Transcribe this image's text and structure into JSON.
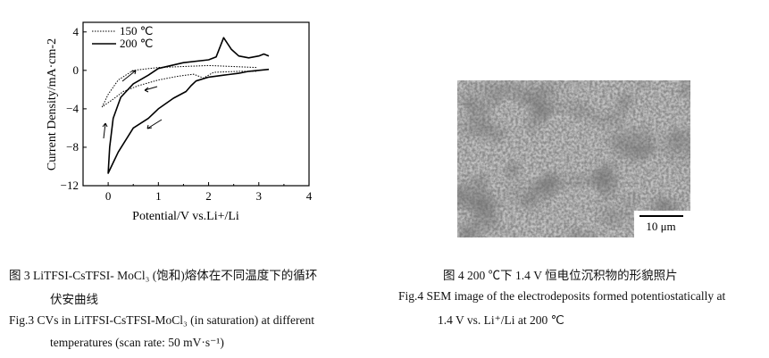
{
  "chart_data": {
    "type": "line",
    "xlabel": "Potential/V vs.Li+/Li",
    "ylabel": "Current Density/mA·cm-2",
    "xlim": [
      -0.5,
      4
    ],
    "ylim": [
      -12,
      5
    ],
    "xticks": [
      "0",
      "1",
      "2",
      "3",
      "4"
    ],
    "xtick_values": [
      0,
      1,
      2,
      3,
      4
    ],
    "yticks": [
      "4",
      "0",
      "−4",
      "−8",
      "−12"
    ],
    "ytick_values": [
      4,
      0,
      -4,
      -8,
      -12
    ],
    "legend_position": "top-left",
    "series": [
      {
        "name": "150 ℃",
        "style": "dotted",
        "points": [
          [
            2.95,
            0.3
          ],
          [
            2.0,
            0.5
          ],
          [
            1.0,
            0.3
          ],
          [
            0.5,
            0.0
          ],
          [
            0.2,
            -1.0
          ],
          [
            0.0,
            -2.5
          ],
          [
            -0.12,
            -3.8
          ],
          [
            0.1,
            -3.0
          ],
          [
            0.3,
            -2.2
          ],
          [
            0.6,
            -1.6
          ],
          [
            1.0,
            -1.0
          ],
          [
            1.4,
            -0.6
          ],
          [
            1.7,
            -0.4
          ],
          [
            1.9,
            -0.8
          ],
          [
            2.1,
            -0.2
          ],
          [
            2.6,
            -0.1
          ],
          [
            2.95,
            -0.1
          ]
        ]
      },
      {
        "name": "200 ℃",
        "style": "solid",
        "points": [
          [
            3.2,
            0.1
          ],
          [
            2.8,
            -0.1
          ],
          [
            2.6,
            -0.3
          ],
          [
            2.3,
            -0.5
          ],
          [
            2.0,
            -0.7
          ],
          [
            1.75,
            -1.1
          ],
          [
            1.65,
            -1.6
          ],
          [
            1.55,
            -2.2
          ],
          [
            1.3,
            -2.9
          ],
          [
            1.0,
            -4.0
          ],
          [
            0.8,
            -5.0
          ],
          [
            0.5,
            -6.0
          ],
          [
            0.2,
            -8.5
          ],
          [
            0.0,
            -10.7
          ],
          [
            0.03,
            -8.0
          ],
          [
            0.1,
            -5.0
          ],
          [
            0.25,
            -2.8
          ],
          [
            0.5,
            -1.4
          ],
          [
            0.8,
            -0.5
          ],
          [
            1.0,
            0.2
          ],
          [
            1.5,
            0.8
          ],
          [
            2.0,
            1.1
          ],
          [
            2.15,
            1.4
          ],
          [
            2.3,
            3.4
          ],
          [
            2.45,
            2.2
          ],
          [
            2.6,
            1.5
          ],
          [
            2.8,
            1.3
          ],
          [
            3.0,
            1.5
          ],
          [
            3.1,
            1.7
          ],
          [
            3.2,
            1.5
          ]
        ]
      }
    ]
  },
  "fig3": {
    "caption_cn_1": "图 3   LiTFSI-CsTFSI- MoCl₃ (饱和)熔体在不同温度下的循环",
    "caption_cn_2": "伏安曲线",
    "caption_en_1": "Fig.3   CVs in LiTFSI-CsTFSI-MoCl₃ (in saturation) at different",
    "caption_en_2": "temperatures (scan rate: 50 mV·s⁻¹)"
  },
  "fig4": {
    "scale_bar": "10 μm",
    "caption_cn": "图 4   200 ℃下 1.4 V 恒电位沉积物的形貌照片",
    "caption_en_1": "Fig.4   SEM image of the electrodeposits formed potentiostatically at",
    "caption_en_2": "1.4 V vs. Li⁺/Li at 200 ℃"
  }
}
